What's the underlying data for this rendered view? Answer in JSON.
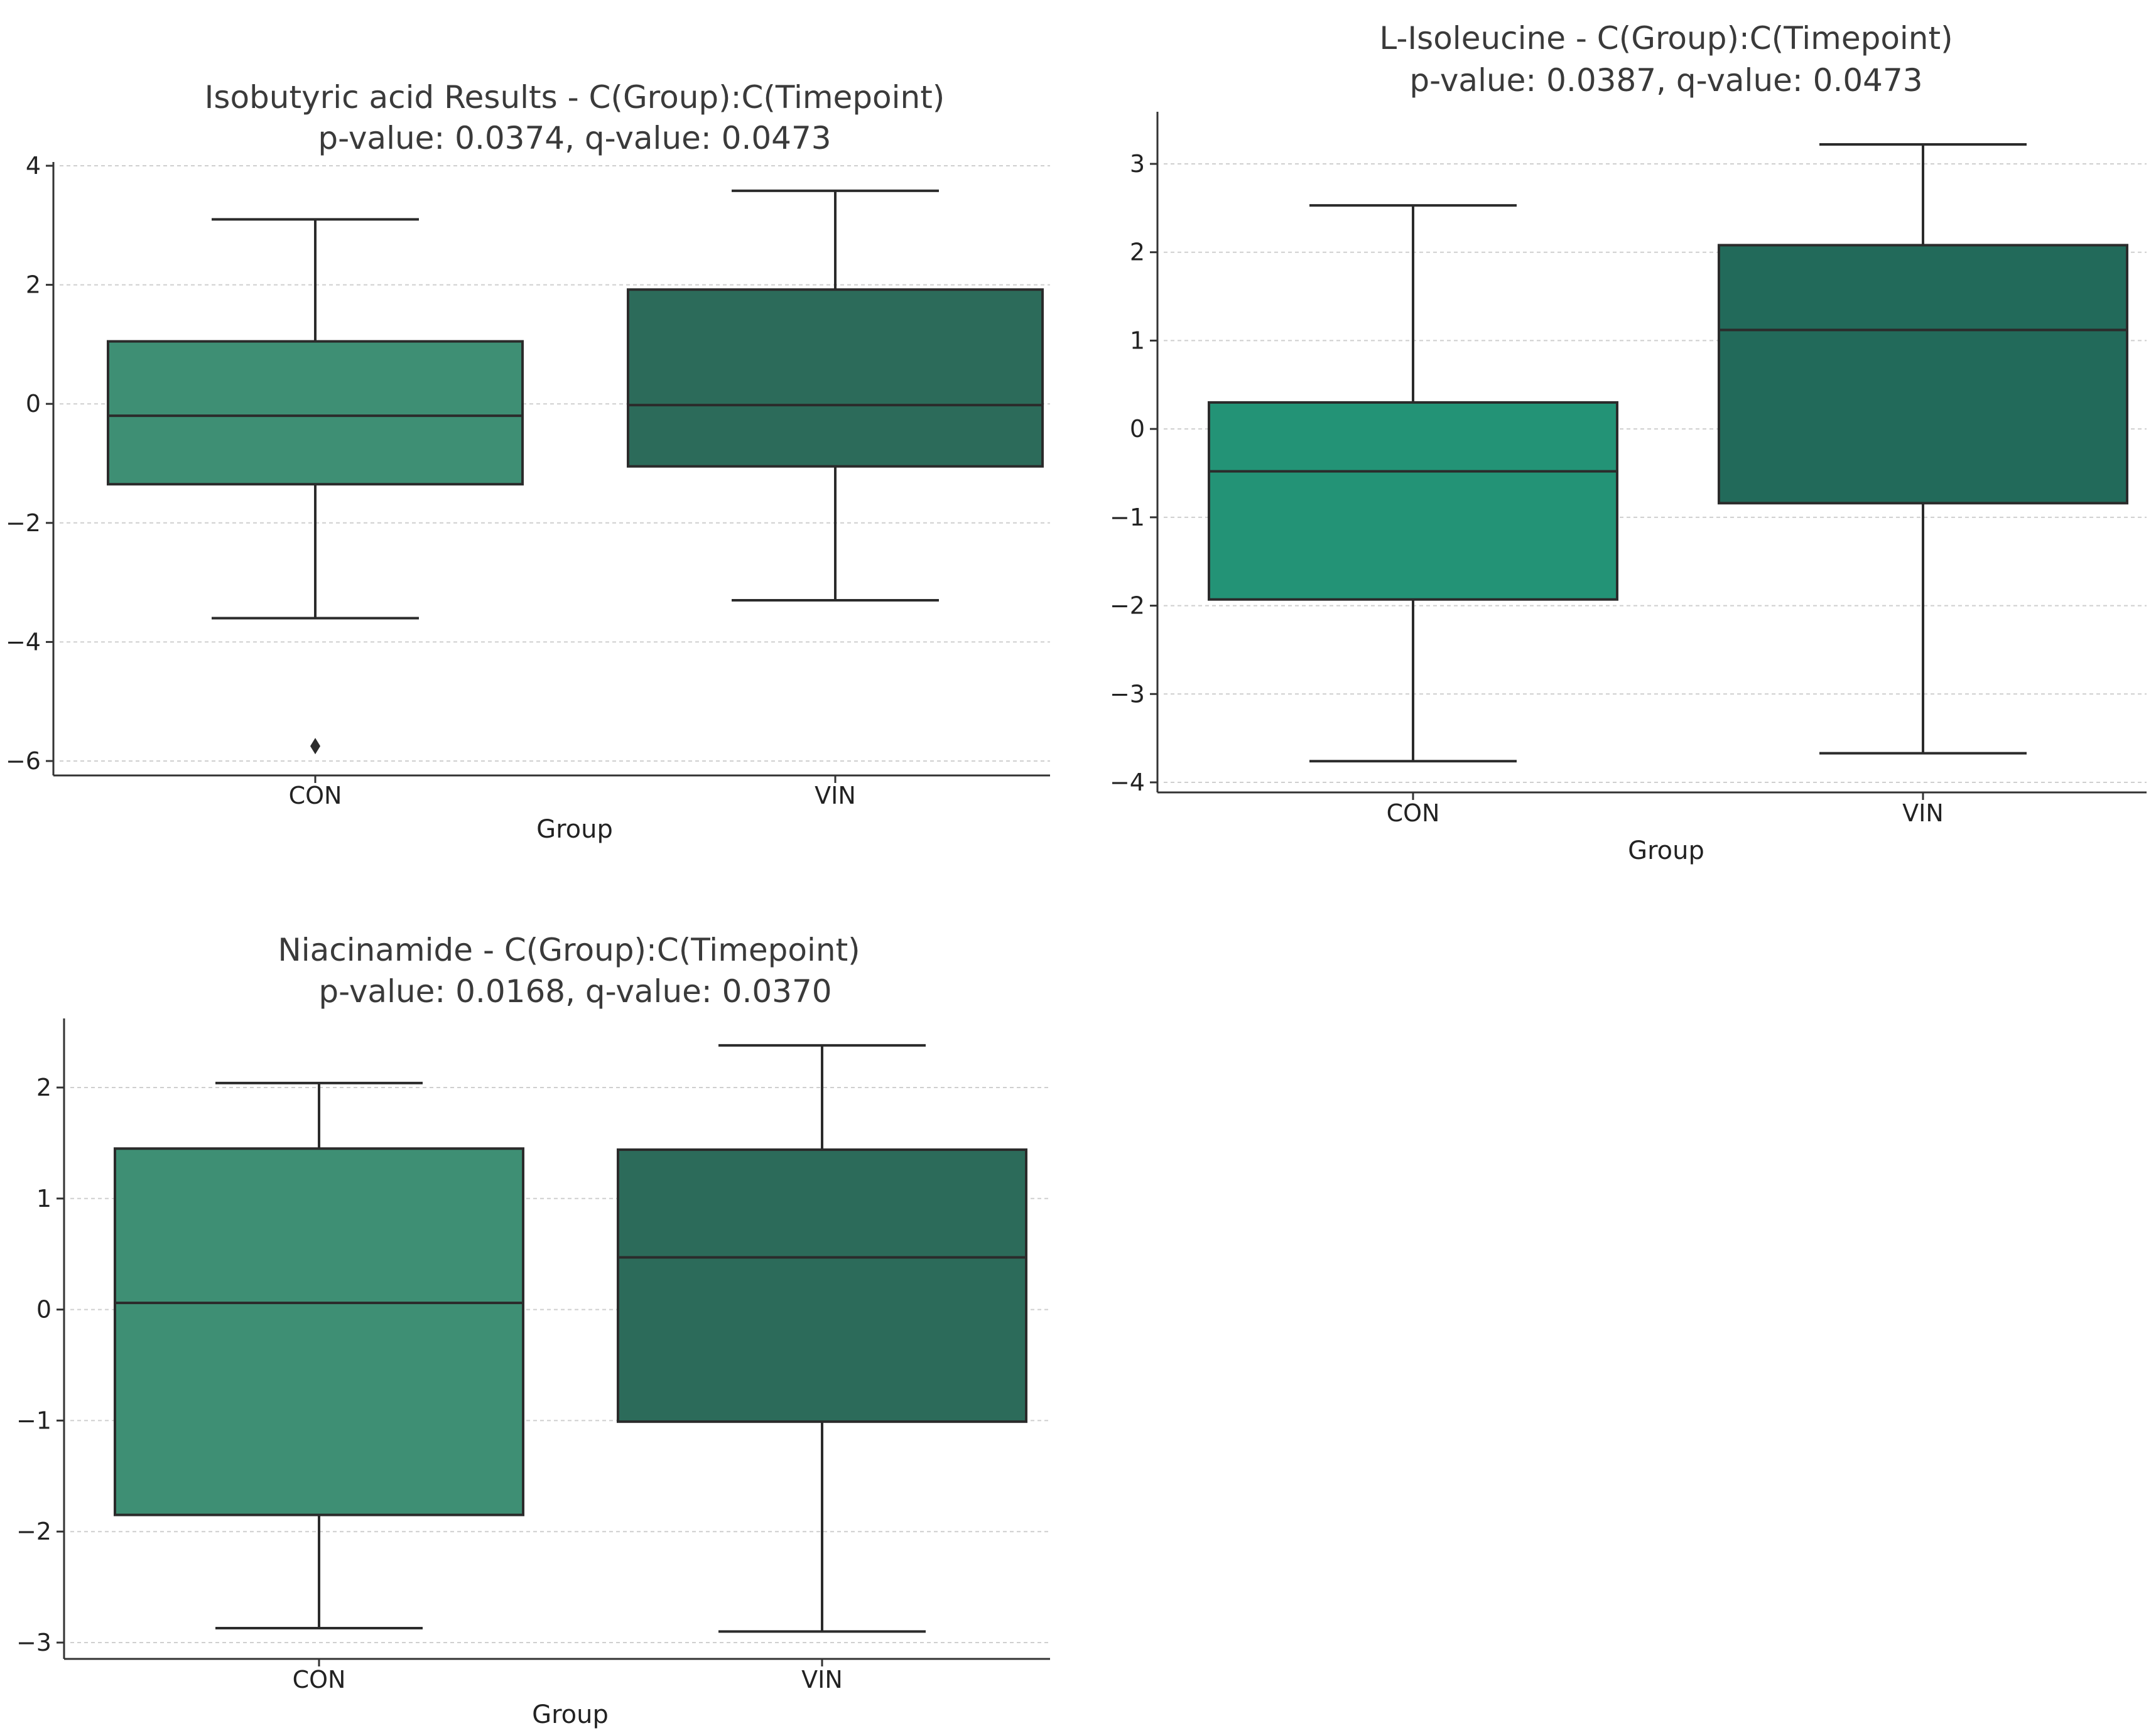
{
  "chart_data": [
    {
      "type": "box",
      "title_line1": "Isobutyric acid Results - C(Group):C(Timepoint)",
      "title_line2": "p-value: 0.0374, q-value: 0.0473",
      "xlabel": "Group",
      "ylabel": "",
      "ylim": [
        -6.2,
        4.0
      ],
      "yticks": [
        4,
        2,
        0,
        -2,
        -4,
        -6
      ],
      "ytick_labels": [
        "4",
        "2",
        "0",
        "−2",
        "−4",
        "−6"
      ],
      "grid": true,
      "categories": [
        "CON",
        "VIN"
      ],
      "boxes": [
        {
          "group": "CON",
          "whisker_low": -3.6,
          "q1": -1.35,
          "median": -0.2,
          "q3": 1.05,
          "whisker_high": 3.1,
          "outliers": [
            -5.75
          ],
          "color": "#3e8f74"
        },
        {
          "group": "VIN",
          "whisker_low": -3.3,
          "q1": -1.05,
          "median": -0.02,
          "q3": 1.92,
          "whisker_high": 3.58,
          "outliers": [],
          "color": "#2c6b5a"
        }
      ]
    },
    {
      "type": "box",
      "title_line1": "L-Isoleucine - C(Group):C(Timepoint)",
      "title_line2": "p-value: 0.0387, q-value: 0.0473",
      "xlabel": "Group",
      "ylabel": "",
      "ylim": [
        -4.1,
        3.5
      ],
      "yticks": [
        3,
        2,
        1,
        0,
        -1,
        -2,
        -3,
        -4
      ],
      "ytick_labels": [
        "3",
        "2",
        "1",
        "0",
        "−1",
        "−2",
        "−3",
        "−4"
      ],
      "grid": true,
      "categories": [
        "CON",
        "VIN"
      ],
      "boxes": [
        {
          "group": "CON",
          "whisker_low": -3.76,
          "q1": -1.93,
          "median": -0.48,
          "q3": 0.3,
          "whisker_high": 2.53,
          "outliers": [],
          "color": "#239376"
        },
        {
          "group": "VIN",
          "whisker_low": -3.67,
          "q1": -0.84,
          "median": 1.12,
          "q3": 2.08,
          "whisker_high": 3.22,
          "outliers": [],
          "color": "#226a5a"
        }
      ]
    },
    {
      "type": "box",
      "title_line1": "Niacinamide - C(Group):C(Timepoint)",
      "title_line2": "p-value: 0.0168, q-value: 0.0370",
      "xlabel": "Group",
      "ylabel": "",
      "ylim": [
        -3.15,
        2.65
      ],
      "yticks": [
        2,
        1,
        0,
        -1,
        -2,
        -3
      ],
      "ytick_labels": [
        "2",
        "1",
        "0",
        "−1",
        "−2",
        "−3"
      ],
      "grid": true,
      "categories": [
        "CON",
        "VIN"
      ],
      "boxes": [
        {
          "group": "CON",
          "whisker_low": -2.87,
          "q1": -1.85,
          "median": 0.06,
          "q3": 1.45,
          "whisker_high": 2.04,
          "outliers": [],
          "color": "#3e8f74"
        },
        {
          "group": "VIN",
          "whisker_low": -2.9,
          "q1": -1.01,
          "median": 0.47,
          "q3": 1.44,
          "whisker_high": 2.38,
          "outliers": [],
          "color": "#2c6b5a"
        }
      ]
    }
  ]
}
